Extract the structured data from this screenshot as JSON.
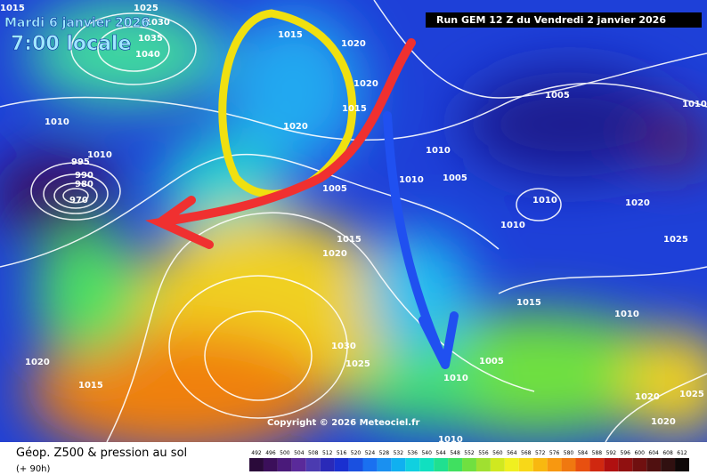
{
  "header": {
    "date": "Mardi 6 janvier 2026",
    "time": "7:00 locale",
    "run": "Run GEM 12 Z du Vendredi 2 janvier 2026"
  },
  "copyright": "Copyright © 2026 Meteociel.fr",
  "footer": {
    "title": "Géop. Z500 & pression au sol",
    "lead": "(+ 90h)"
  },
  "isobar_labels": [
    "1015",
    "1025",
    "1030",
    "1035",
    "1040",
    "1015",
    "1020",
    "1020",
    "1015",
    "1020",
    "1010",
    "1010",
    "995",
    "990",
    "980",
    "970",
    "1005",
    "1010",
    "1010",
    "1005",
    "1005",
    "1010",
    "1010",
    "1010",
    "1020",
    "1025",
    "1015",
    "1020",
    "1015",
    "1010",
    "1030",
    "1025",
    "1020",
    "1015",
    "1010",
    "1005",
    "1020",
    "1025",
    "1020",
    "1010"
  ],
  "scale": {
    "labels": [
      "492",
      "496",
      "500",
      "504",
      "508",
      "512",
      "516",
      "520",
      "524",
      "528",
      "532",
      "536",
      "540",
      "544",
      "548",
      "552",
      "556",
      "560",
      "564",
      "568",
      "572",
      "576",
      "580",
      "584",
      "588",
      "592",
      "596",
      "600",
      "604",
      "608",
      "612"
    ],
    "colors": [
      "#2a0a3a",
      "#3b0f5a",
      "#4a1a7a",
      "#5a2a9a",
      "#4b3bb0",
      "#2a2ab8",
      "#1a30d0",
      "#1a50e0",
      "#1a70f0",
      "#1a90f0",
      "#10b0f0",
      "#10d0e0",
      "#10e0c0",
      "#20e090",
      "#40e060",
      "#70e040",
      "#a0e030",
      "#d0e820",
      "#f0f020",
      "#f8d818",
      "#f8b810",
      "#f89810",
      "#f07810",
      "#e85010",
      "#d02810",
      "#b01010",
      "#901010",
      "#701010",
      "#501010",
      "#301010",
      "#100808"
    ]
  }
}
